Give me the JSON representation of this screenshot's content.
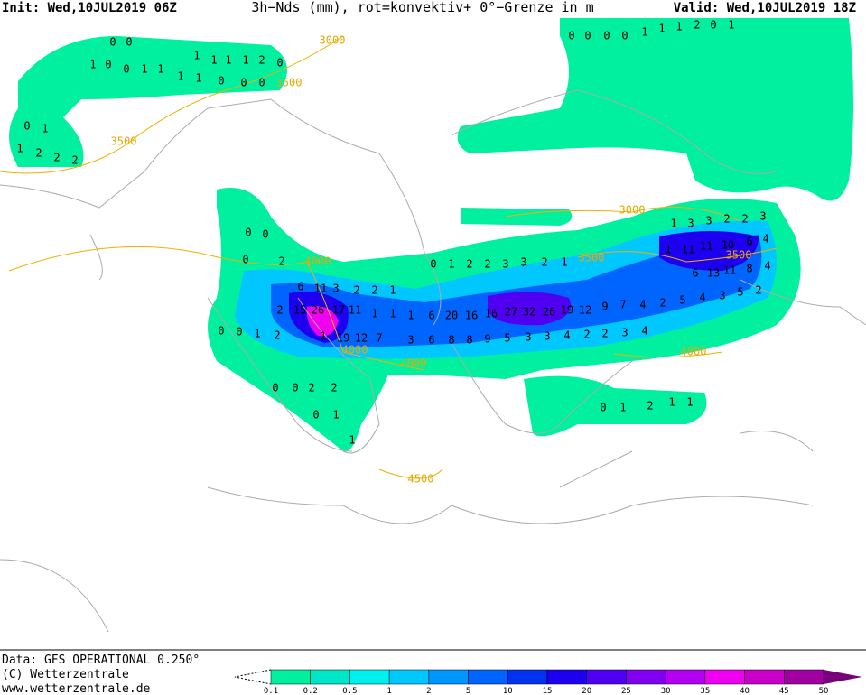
{
  "header": {
    "init": "Init: Wed,10JUL2019 06Z",
    "title": "3h−Nds (mm), rot=konvektiv+ 0°−Grenze in m",
    "valid": "Valid: Wed,10JUL2019 18Z"
  },
  "contour_labels": [
    3000,
    3500,
    3500,
    4000,
    4000,
    4000,
    3000,
    3500,
    3500,
    4000,
    4500
  ],
  "grid_values": [
    0,
    0,
    1,
    0,
    0,
    1,
    1,
    1,
    1,
    1,
    1,
    2,
    0,
    1,
    1,
    0,
    0,
    0,
    0,
    1,
    1,
    2,
    2,
    2,
    0,
    0,
    0,
    2,
    6,
    11,
    3,
    2,
    2,
    1,
    2,
    15,
    26,
    17,
    11,
    1,
    1,
    1,
    6,
    20,
    16,
    16,
    27,
    32,
    26,
    19,
    12,
    9,
    7,
    4,
    2,
    5,
    4,
    3,
    5,
    2,
    0,
    0,
    1,
    2,
    1,
    19,
    12,
    7,
    3,
    6,
    8,
    8,
    9,
    5,
    3,
    3,
    4,
    2,
    2,
    3,
    4,
    0,
    1,
    2,
    2,
    3,
    3,
    2,
    1,
    1,
    11,
    11,
    10,
    6,
    4,
    1,
    3,
    3,
    2,
    2,
    3,
    6,
    13,
    11,
    8,
    4,
    0,
    0,
    2,
    2,
    0,
    1,
    1,
    0,
    1,
    2,
    1,
    1,
    0,
    0,
    0,
    0,
    1,
    1,
    1,
    2,
    0,
    1
  ],
  "colorbar": {
    "levels": [
      0.1,
      0.2,
      0.5,
      1,
      2,
      5,
      10,
      15,
      20,
      25,
      30,
      35,
      40,
      45,
      50
    ],
    "colors": [
      "#00f0a0",
      "#00e6c8",
      "#00f0f0",
      "#00c8ff",
      "#0096ff",
      "#0064ff",
      "#0032f0",
      "#1e00f0",
      "#5000f0",
      "#8200f0",
      "#b400f0",
      "#f000f0",
      "#c800c8",
      "#a000a0",
      "#780078"
    ]
  },
  "footer": {
    "data": "Data: GFS OPERATIONAL 0.250°",
    "copyright": "(C) Wetterzentrale",
    "url": "www.wetterzentrale.de"
  }
}
